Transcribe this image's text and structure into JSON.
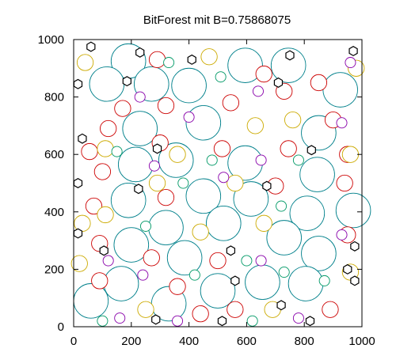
{
  "chart_data": {
    "type": "scatter",
    "title": "BitForest mit B=0.75868075",
    "xlabel": "",
    "ylabel": "",
    "xlim": [
      0,
      1000
    ],
    "ylim": [
      0,
      1000
    ],
    "xticks": [
      0,
      200,
      400,
      600,
      800,
      1000
    ],
    "yticks": [
      0,
      200,
      400,
      600,
      800,
      1000
    ],
    "grid": false,
    "legend": "none",
    "series": [
      {
        "color": "#00808b",
        "marker": "circle",
        "points": [
          [
            190,
            925,
            60
          ],
          [
            115,
            845,
            60
          ],
          [
            270,
            845,
            60
          ],
          [
            400,
            840,
            60
          ],
          [
            595,
            910,
            60
          ],
          [
            745,
            910,
            60
          ],
          [
            925,
            825,
            60
          ],
          [
            230,
            690,
            60
          ],
          [
            450,
            710,
            60
          ],
          [
            850,
            675,
            60
          ],
          [
            215,
            565,
            60
          ],
          [
            355,
            580,
            60
          ],
          [
            595,
            570,
            60
          ],
          [
            845,
            530,
            60
          ],
          [
            190,
            440,
            60
          ],
          [
            450,
            455,
            60
          ],
          [
            615,
            445,
            60
          ],
          [
            810,
            395,
            60
          ],
          [
            970,
            405,
            60
          ],
          [
            320,
            345,
            60
          ],
          [
            520,
            360,
            60
          ],
          [
            200,
            285,
            60
          ],
          [
            385,
            240,
            60
          ],
          [
            730,
            310,
            60
          ],
          [
            850,
            255,
            60
          ],
          [
            165,
            150,
            60
          ],
          [
            330,
            80,
            60
          ],
          [
            500,
            125,
            60
          ],
          [
            655,
            155,
            60
          ],
          [
            805,
            150,
            60
          ],
          [
            60,
            90,
            60
          ]
        ]
      },
      {
        "color": "#cc0000",
        "marker": "circle",
        "points": [
          [
            290,
            930,
            28
          ],
          [
            660,
            880,
            28
          ],
          [
            850,
            850,
            28
          ],
          [
            170,
            760,
            28
          ],
          [
            320,
            770,
            28
          ],
          [
            545,
            780,
            28
          ],
          [
            730,
            820,
            28
          ],
          [
            900,
            720,
            28
          ],
          [
            120,
            690,
            28
          ],
          [
            300,
            640,
            28
          ],
          [
            745,
            620,
            28
          ],
          [
            55,
            610,
            28
          ],
          [
            950,
            600,
            28
          ],
          [
            100,
            540,
            28
          ],
          [
            515,
            620,
            28
          ],
          [
            940,
            500,
            28
          ],
          [
            70,
            420,
            28
          ],
          [
            320,
            450,
            28
          ],
          [
            700,
            490,
            28
          ],
          [
            90,
            290,
            28
          ],
          [
            270,
            240,
            28
          ],
          [
            500,
            230,
            28
          ],
          [
            950,
            320,
            28
          ],
          [
            90,
            160,
            28
          ],
          [
            360,
            140,
            28
          ],
          [
            560,
            60,
            28
          ],
          [
            890,
            60,
            28
          ],
          [
            440,
            45,
            28
          ]
        ]
      },
      {
        "color": "#ccaa00",
        "marker": "circle",
        "points": [
          [
            40,
            920,
            28
          ],
          [
            470,
            940,
            28
          ],
          [
            110,
            620,
            28
          ],
          [
            760,
            720,
            28
          ],
          [
            360,
            600,
            28
          ],
          [
            630,
            700,
            28
          ],
          [
            290,
            500,
            28
          ],
          [
            560,
            500,
            28
          ],
          [
            960,
            600,
            28
          ],
          [
            30,
            360,
            28
          ],
          [
            110,
            390,
            28
          ],
          [
            660,
            360,
            28
          ],
          [
            960,
            190,
            28
          ],
          [
            250,
            60,
            28
          ],
          [
            690,
            60,
            28
          ],
          [
            20,
            220,
            28
          ],
          [
            440,
            330,
            28
          ],
          [
            980,
            900,
            28
          ]
        ]
      },
      {
        "color": "#8800aa",
        "marker": "circle",
        "points": [
          [
            960,
            920,
            18
          ],
          [
            230,
            800,
            18
          ],
          [
            400,
            730,
            18
          ],
          [
            640,
            820,
            18
          ],
          [
            930,
            710,
            18
          ],
          [
            280,
            560,
            18
          ],
          [
            650,
            580,
            18
          ],
          [
            520,
            520,
            18
          ],
          [
            930,
            320,
            18
          ],
          [
            120,
            230,
            18
          ],
          [
            240,
            180,
            18
          ],
          [
            650,
            230,
            18
          ],
          [
            360,
            20,
            18
          ],
          [
            780,
            30,
            18
          ],
          [
            160,
            30,
            18
          ]
        ]
      },
      {
        "color": "#009966",
        "marker": "circle",
        "points": [
          [
            510,
            870,
            18
          ],
          [
            330,
            920,
            18
          ],
          [
            150,
            610,
            18
          ],
          [
            780,
            580,
            18
          ],
          [
            480,
            580,
            18
          ],
          [
            380,
            500,
            18
          ],
          [
            720,
            420,
            18
          ],
          [
            250,
            350,
            18
          ],
          [
            600,
            230,
            18
          ],
          [
            420,
            180,
            18
          ],
          [
            730,
            190,
            18
          ],
          [
            870,
            160,
            18
          ],
          [
            100,
            20,
            18
          ],
          [
            620,
            20,
            18
          ]
        ]
      },
      {
        "color": "#000000",
        "marker": "hexagon",
        "points": [
          [
            60,
            975,
            16
          ],
          [
            230,
            955,
            16
          ],
          [
            410,
            930,
            16
          ],
          [
            750,
            945,
            16
          ],
          [
            970,
            960,
            16
          ],
          [
            15,
            845,
            16
          ],
          [
            185,
            855,
            16
          ],
          [
            710,
            850,
            16
          ],
          [
            30,
            655,
            16
          ],
          [
            290,
            620,
            16
          ],
          [
            825,
            615,
            16
          ],
          [
            15,
            500,
            16
          ],
          [
            225,
            480,
            16
          ],
          [
            670,
            490,
            16
          ],
          [
            105,
            265,
            16
          ],
          [
            545,
            265,
            16
          ],
          [
            975,
            280,
            16
          ],
          [
            15,
            325,
            16
          ],
          [
            950,
            200,
            16
          ],
          [
            975,
            160,
            16
          ],
          [
            560,
            160,
            16
          ],
          [
            720,
            75,
            16
          ],
          [
            820,
            20,
            16
          ],
          [
            515,
            20,
            16
          ],
          [
            285,
            25,
            16
          ]
        ]
      }
    ]
  }
}
